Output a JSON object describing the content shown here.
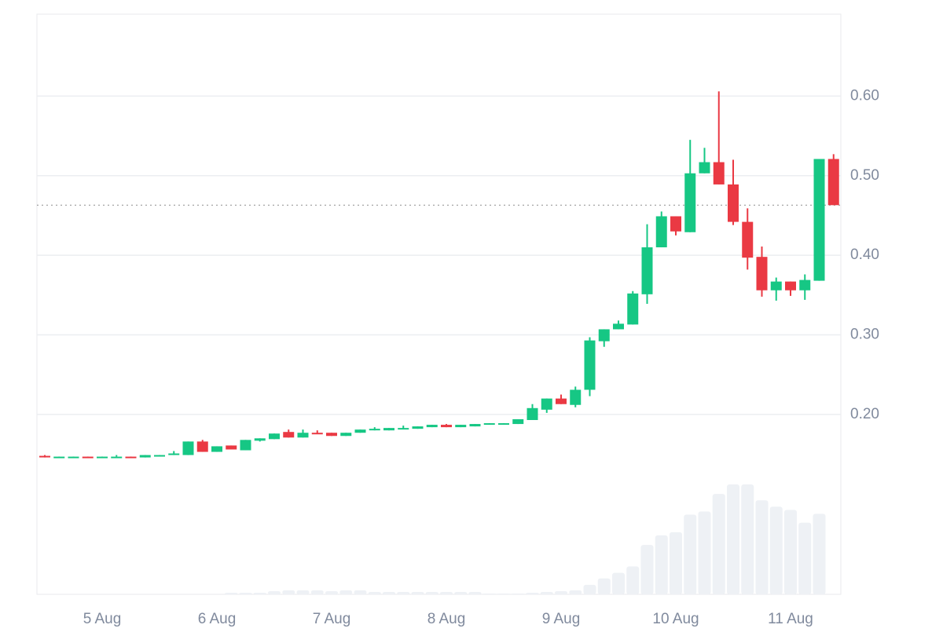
{
  "chart_data": {
    "type": "candlestick",
    "categories": [
      null,
      null,
      null,
      null,
      "5 Aug",
      null,
      null,
      null,
      null,
      null,
      null,
      null,
      "6 Aug",
      null,
      null,
      null,
      null,
      null,
      null,
      null,
      "7 Aug",
      null,
      null,
      null,
      null,
      null,
      null,
      null,
      "8 Aug",
      null,
      null,
      null,
      null,
      null,
      null,
      null,
      "9 Aug",
      null,
      null,
      null,
      null,
      null,
      null,
      null,
      "10 Aug",
      null,
      null,
      null,
      null,
      null,
      null,
      null,
      "11 Aug",
      null,
      null,
      null
    ],
    "open": [
      0.148,
      0.146,
      0.147,
      0.147,
      0.146,
      0.147,
      0.147,
      0.146,
      0.149,
      0.149,
      0.149,
      0.166,
      0.153,
      0.161,
      0.155,
      0.167,
      0.169,
      0.178,
      0.171,
      0.177,
      0.177,
      0.173,
      0.177,
      0.18,
      0.18,
      0.182,
      0.182,
      0.184,
      0.187,
      0.184,
      0.185,
      0.188,
      0.188,
      0.188,
      0.193,
      0.206,
      0.22,
      0.212,
      0.231,
      0.292,
      0.307,
      0.313,
      0.351,
      0.41,
      0.449,
      0.429,
      0.503,
      0.517,
      0.489,
      0.442,
      0.398,
      0.356,
      0.367,
      0.356,
      0.368,
      0.521
    ],
    "high": [
      0.149,
      0.147,
      0.147,
      0.147,
      0.147,
      0.149,
      0.147,
      0.149,
      0.149,
      0.154,
      0.166,
      0.168,
      0.16,
      0.161,
      0.168,
      0.17,
      0.176,
      0.181,
      0.181,
      0.18,
      0.177,
      0.177,
      0.181,
      0.184,
      0.183,
      0.186,
      0.185,
      0.187,
      0.188,
      0.187,
      0.188,
      0.189,
      0.189,
      0.194,
      0.213,
      0.22,
      0.225,
      0.235,
      0.297,
      0.307,
      0.318,
      0.355,
      0.439,
      0.455,
      0.449,
      0.545,
      0.535,
      0.606,
      0.52,
      0.459,
      0.411,
      0.372,
      0.367,
      0.376,
      0.521,
      0.527
    ],
    "low": [
      0.146,
      0.146,
      0.146,
      0.146,
      0.146,
      0.147,
      0.146,
      0.146,
      0.148,
      0.149,
      0.149,
      0.153,
      0.153,
      0.156,
      0.155,
      0.166,
      0.169,
      0.171,
      0.171,
      0.176,
      0.173,
      0.173,
      0.177,
      0.18,
      0.18,
      0.182,
      0.182,
      0.184,
      0.184,
      0.184,
      0.185,
      0.188,
      0.188,
      0.188,
      0.193,
      0.202,
      0.213,
      0.209,
      0.223,
      0.285,
      0.307,
      0.313,
      0.339,
      0.41,
      0.425,
      0.429,
      0.503,
      0.489,
      0.438,
      0.382,
      0.348,
      0.343,
      0.349,
      0.344,
      0.368,
      0.463
    ],
    "close": [
      0.147,
      0.147,
      0.147,
      0.146,
      0.147,
      0.147,
      0.146,
      0.149,
      0.149,
      0.151,
      0.166,
      0.153,
      0.16,
      0.156,
      0.168,
      0.17,
      0.176,
      0.171,
      0.177,
      0.176,
      0.173,
      0.177,
      0.181,
      0.182,
      0.183,
      0.183,
      0.185,
      0.187,
      0.184,
      0.187,
      0.188,
      0.189,
      0.189,
      0.194,
      0.208,
      0.22,
      0.213,
      0.231,
      0.293,
      0.307,
      0.314,
      0.352,
      0.41,
      0.449,
      0.43,
      0.503,
      0.517,
      0.489,
      0.442,
      0.397,
      0.356,
      0.367,
      0.356,
      0.369,
      0.521,
      0.463
    ],
    "volume": [
      0,
      0,
      0,
      0,
      0,
      0,
      0,
      0,
      0,
      0,
      0,
      0,
      0,
      2,
      2,
      2,
      4,
      5,
      5,
      5,
      4,
      5,
      5,
      3,
      3,
      3,
      3,
      3,
      3,
      3,
      3,
      1,
      1,
      1,
      2,
      3,
      4,
      5,
      12,
      20,
      27,
      35,
      62,
      74,
      78,
      100,
      104,
      126,
      138,
      138,
      118,
      110,
      106,
      90,
      101,
      0
    ],
    "up_color": "#16c784",
    "down_color": "#ea3943",
    "volume_color": "#eef1f5",
    "ylim": [
      -0.026,
      0.703
    ],
    "yticks": [
      {
        "value": 0.2,
        "label": "0.20"
      },
      {
        "value": 0.3,
        "label": "0.30"
      },
      {
        "value": 0.4,
        "label": "0.40"
      },
      {
        "value": 0.5,
        "label": "0.50"
      },
      {
        "value": 0.6,
        "label": "0.60"
      }
    ],
    "price_line": 0.463,
    "grid": true
  }
}
